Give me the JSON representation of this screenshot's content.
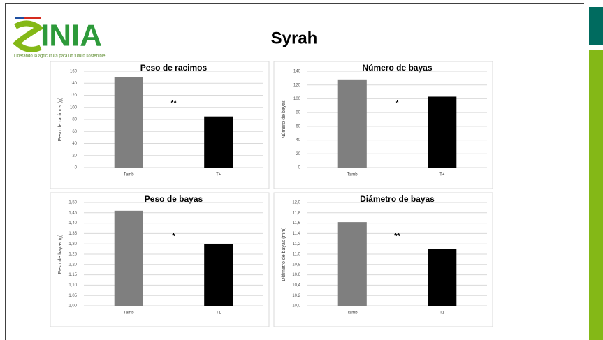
{
  "header": {
    "title": "Syrah",
    "logo": "INIA",
    "tagline": "Liderando la agricultura para un futuro sostenible"
  },
  "chart_data": [
    {
      "type": "bar",
      "title": "Peso de racimos",
      "ylabel": "Peso de racimos (g)",
      "categories": [
        "Tamb",
        "T+"
      ],
      "values": [
        150,
        85
      ],
      "colors": [
        "#7f7f7f",
        "#000000"
      ],
      "annotation": "**",
      "ylim": [
        0,
        160
      ],
      "yticks": [
        0,
        20,
        40,
        60,
        80,
        100,
        120,
        140,
        160
      ],
      "grid": true
    },
    {
      "type": "bar",
      "title": "Número de bayas",
      "ylabel": "Número de bayas",
      "categories": [
        "Tamb",
        "T+"
      ],
      "values": [
        128,
        103
      ],
      "colors": [
        "#7f7f7f",
        "#000000"
      ],
      "annotation": "*",
      "ylim": [
        0,
        140
      ],
      "yticks": [
        0,
        20,
        40,
        60,
        80,
        100,
        120,
        140
      ],
      "grid": true
    },
    {
      "type": "bar",
      "title": "Peso de bayas",
      "ylabel": "Peso de bayas (g)",
      "categories": [
        "Tamb",
        "T1"
      ],
      "values": [
        1.46,
        1.3
      ],
      "colors": [
        "#7f7f7f",
        "#000000"
      ],
      "annotation": "*",
      "ylim": [
        1.0,
        1.5
      ],
      "yticks": [
        {
          "value": 1.0,
          "label": "1,00"
        },
        {
          "value": 1.05,
          "label": "1,05"
        },
        {
          "value": 1.1,
          "label": "1,10"
        },
        {
          "value": 1.15,
          "label": "1,15"
        },
        {
          "value": 1.2,
          "label": "1,20"
        },
        {
          "value": 1.25,
          "label": "1,25"
        },
        {
          "value": 1.3,
          "label": "1,30"
        },
        {
          "value": 1.35,
          "label": "1,35"
        },
        {
          "value": 1.4,
          "label": "1,40"
        },
        {
          "value": 1.45,
          "label": "1,45"
        },
        {
          "value": 1.5,
          "label": "1,50"
        }
      ],
      "grid": true
    },
    {
      "type": "bar",
      "title": "Diámetro de bayas",
      "ylabel": "Diámetro de bayas (mm)",
      "categories": [
        "Tamb",
        "T1"
      ],
      "values": [
        11.62,
        11.1
      ],
      "colors": [
        "#7f7f7f",
        "#000000"
      ],
      "annotation": "**",
      "ylim": [
        10.0,
        12.0
      ],
      "yticks": [
        {
          "value": 10.0,
          "label": "10,0"
        },
        {
          "value": 10.2,
          "label": "10,2"
        },
        {
          "value": 10.4,
          "label": "10,4"
        },
        {
          "value": 10.6,
          "label": "10,6"
        },
        {
          "value": 10.8,
          "label": "10,8"
        },
        {
          "value": 11.0,
          "label": "11,0"
        },
        {
          "value": 11.2,
          "label": "11,2"
        },
        {
          "value": 11.4,
          "label": "11,4"
        },
        {
          "value": 11.6,
          "label": "11,6"
        },
        {
          "value": 11.8,
          "label": "11,8"
        },
        {
          "value": 12.0,
          "label": "12,0"
        }
      ],
      "grid": true
    }
  ]
}
